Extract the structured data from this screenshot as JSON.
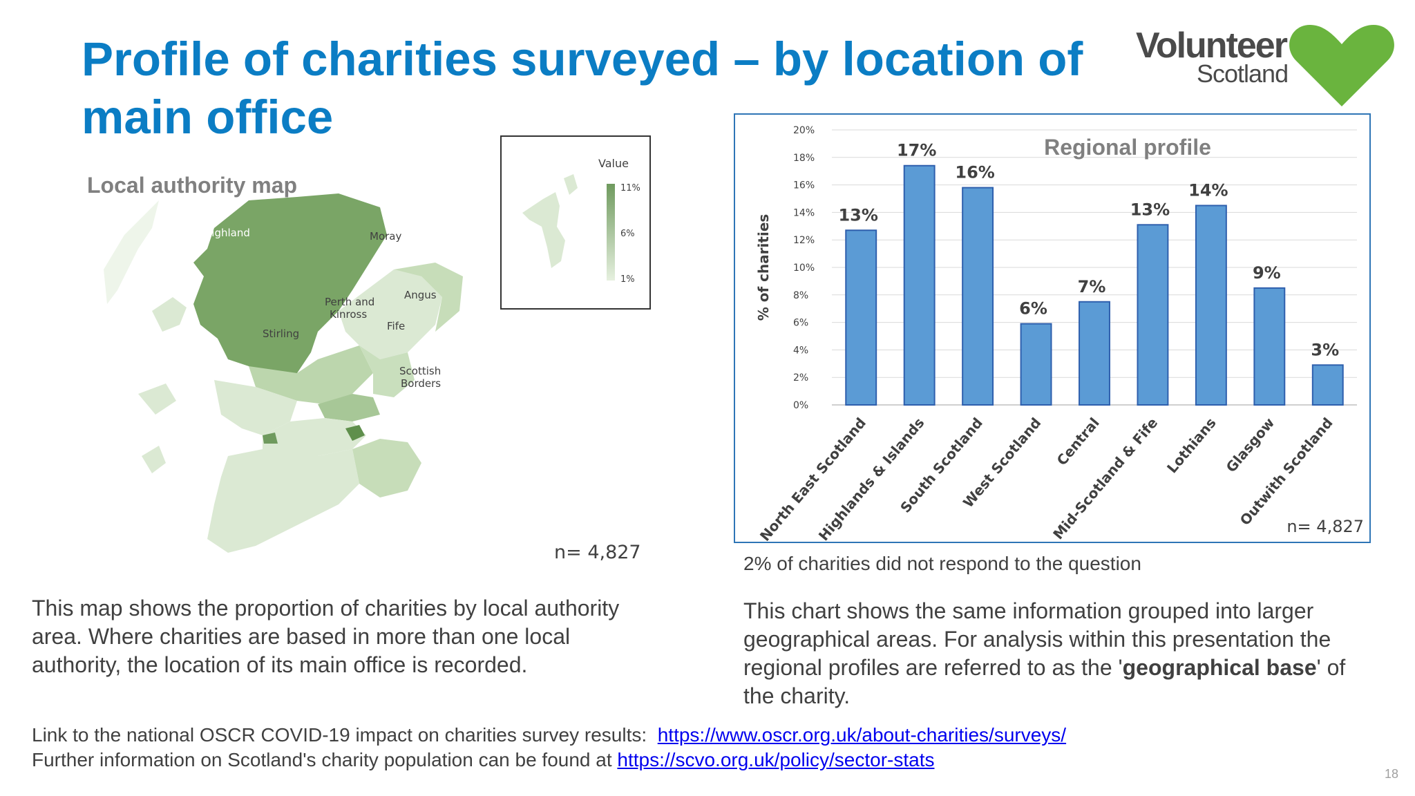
{
  "slide": {
    "title": "Profile of charities surveyed – by location of main office",
    "page_number": "18"
  },
  "logo": {
    "line1": "Volunteer",
    "line2": "Scotland",
    "heart_color": "#6ab43e"
  },
  "map": {
    "label": "Local authority map",
    "legend_title": "Value",
    "legend_ticks": [
      "11%",
      "6%",
      "1%"
    ],
    "regions": [
      "Highland",
      "Moray",
      "Angus",
      "Perth and",
      "Kinross",
      "Fife",
      "Stirling",
      "Scottish",
      "Borders"
    ],
    "n_label": "n= 4,827",
    "colors": {
      "dark": "#6f9a5e",
      "mid": "#a9c79c",
      "light": "#dbe9d3",
      "lightest": "#eef5ea"
    }
  },
  "chart_data": {
    "type": "bar",
    "title": "Regional profile",
    "ylabel": "% of charities",
    "xlabel": "",
    "categories": [
      "North East Scotland",
      "Highlands & Islands",
      "South Scotland",
      "West Scotland",
      "Central",
      "Mid-Scotland & Fife",
      "Lothians",
      "Glasgow",
      "Outwith Scotland"
    ],
    "values": [
      12.7,
      17.4,
      15.8,
      5.9,
      7.5,
      13.1,
      14.5,
      8.5,
      2.9
    ],
    "data_labels": [
      "13%",
      "17%",
      "16%",
      "6%",
      "7%",
      "13%",
      "14%",
      "9%",
      "3%"
    ],
    "yticks": [
      "0%",
      "2%",
      "4%",
      "6%",
      "8%",
      "10%",
      "12%",
      "14%",
      "16%",
      "18%",
      "20%"
    ],
    "ylim": [
      0,
      20
    ],
    "grid": true,
    "bar_color": "#5b9bd5",
    "bar_edge": "#2e5fad",
    "n_label": "n= 4,827"
  },
  "notes": {
    "no_response": "2% of charities did not respond to the question",
    "left_paragraph": "This map shows the proportion of charities by local authority area. Where charities are based in more than one local authority, the location of its main office is recorded.",
    "right_paragraph_part1": "This chart shows the same information grouped into larger geographical areas. For analysis within this presentation the regional profiles are referred to as the '",
    "right_paragraph_bold": "geographical base",
    "right_paragraph_part2": "' of the charity.",
    "link1_text": "Link to the national OSCR COVID-19 impact on charities survey results:",
    "link1_url": "https://www.oscr.org.uk/about-charities/surveys/",
    "link2_text": "Further information on Scotland's charity population can be found at",
    "link2_url": "https://scvo.org.uk/policy/sector-stats"
  }
}
